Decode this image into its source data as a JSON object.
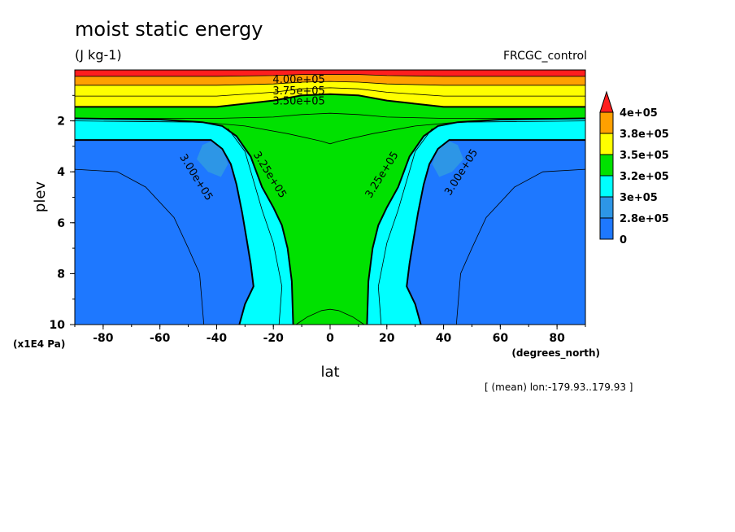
{
  "title": "moist static energy",
  "units": "(J kg-1)",
  "experiment": "FRCGC_control",
  "note": "[ (mean) lon:-179.93..179.93 ]",
  "colors": {
    "frame": "#000000",
    "levels": [
      "#1e78ff",
      "#2d96e6",
      "#00ffff",
      "#00e100",
      "#ffff00",
      "#ffa000",
      "#ff1e1e"
    ]
  },
  "chart_data": {
    "type": "heatmap",
    "subtype": "filled-contour",
    "xlabel": "lat",
    "xunits": "(degrees_north)",
    "ylabel": "plev",
    "yunits": "(x1E4 Pa)",
    "xlim": [
      -90,
      90
    ],
    "ylim": [
      0,
      10
    ],
    "yaxis_inverted": true,
    "xticks": [
      -80,
      -60,
      -40,
      -20,
      0,
      20,
      40,
      60,
      80
    ],
    "yticks": [
      2,
      4,
      6,
      8,
      10
    ],
    "colorbar": {
      "labels": [
        "4e+05",
        "3.8e+05",
        "3.5e+05",
        "3.2e+05",
        "3e+05",
        "2.8e+05",
        "0"
      ],
      "levels": [
        0,
        280000,
        300000,
        320000,
        350000,
        380000,
        400000
      ],
      "colors": [
        "#1e78ff",
        "#2d96e6",
        "#00ffff",
        "#00e100",
        "#ffff00",
        "#ffa000",
        "#ff1e1e"
      ],
      "extend_top": true
    },
    "contour_labels": [
      {
        "text": "4.00e+05",
        "lat": -11,
        "plev": 0.35
      },
      {
        "text": "3.75e+05",
        "lat": -11,
        "plev": 0.8
      },
      {
        "text": "3.50e+05",
        "lat": -11,
        "plev": 1.2
      },
      {
        "text": "3.00e+05",
        "lat": -47,
        "plev": 4.2
      },
      {
        "text": "3.25e+05",
        "lat": -21,
        "plev": 4.1
      },
      {
        "text": "3.25e+05",
        "lat": 18,
        "plev": 4.1
      },
      {
        "text": "3.00e+05",
        "lat": 46,
        "plev": 4.0
      }
    ],
    "band_boundaries": {
      "lat": [
        -90,
        -40,
        -20,
        -10,
        0,
        10,
        20,
        40,
        90
      ],
      "plev_band_400000": [
        0.25,
        0.25,
        0.22,
        0.18,
        0.18,
        0.18,
        0.22,
        0.25,
        0.25
      ],
      "plev_band_380000": [
        0.6,
        0.6,
        0.55,
        0.48,
        0.45,
        0.48,
        0.55,
        0.6,
        0.6
      ],
      "plev_band_350000": [
        1.45,
        1.45,
        1.2,
        1.0,
        0.95,
        1.0,
        1.2,
        1.45,
        1.45
      ],
      "plev_band_320000": [
        1.9,
        1.9,
        1.85,
        1.75,
        1.7,
        1.75,
        1.85,
        1.9,
        1.9
      ]
    }
  }
}
